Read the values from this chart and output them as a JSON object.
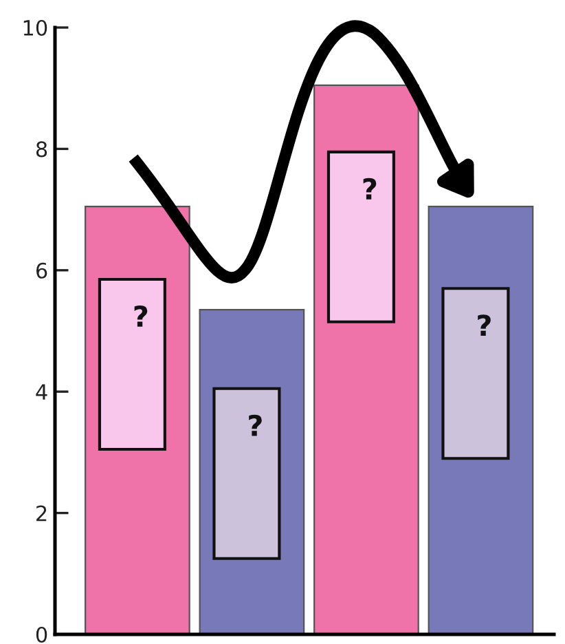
{
  "chart_data": {
    "type": "bar",
    "categories": [
      null,
      null,
      null,
      null
    ],
    "values": [
      7.05,
      5.35,
      9.05,
      7.05
    ],
    "colors": [
      "#ef72a9",
      "#7779b9",
      "#ef72a9",
      "#7779b9"
    ],
    "ylim": [
      0,
      10
    ],
    "yticks": [
      0,
      2,
      4,
      6,
      8,
      10
    ],
    "annotations": [
      "?",
      "?",
      "?",
      "?"
    ]
  }
}
